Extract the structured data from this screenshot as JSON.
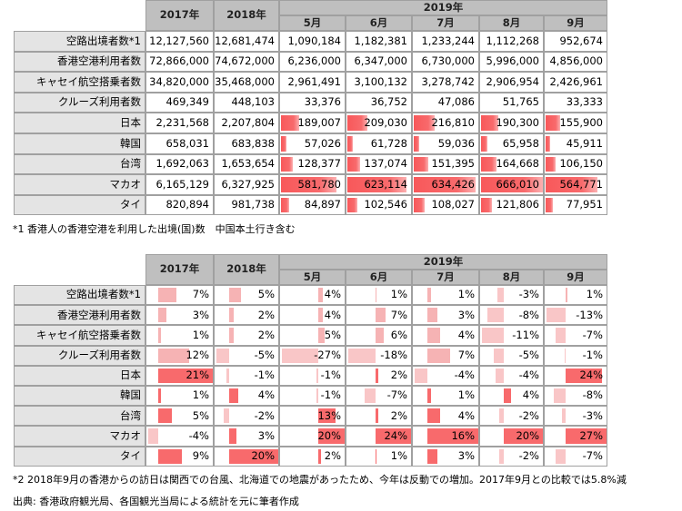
{
  "table1": {
    "header": {
      "years": [
        "2017年",
        "2018年",
        "2019年"
      ],
      "months": [
        "5月",
        "6月",
        "7月",
        "8月",
        "9月"
      ]
    },
    "rows": [
      {
        "label": "空路出境者数*1",
        "cells": [
          "12,127,560",
          "12,681,474",
          "1,090,184",
          "1,182,381",
          "1,233,244",
          "1,112,268",
          "952,674"
        ]
      },
      {
        "label": "香港空港利用者数",
        "cells": [
          "72,866,000",
          "74,672,000",
          "6,236,000",
          "6,347,000",
          "6,730,000",
          "5,996,000",
          "4,856,000"
        ]
      },
      {
        "label": "キャセイ航空搭乗者数",
        "cells": [
          "34,820,000",
          "35,468,000",
          "2,961,491",
          "3,100,132",
          "3,278,742",
          "2,906,954",
          "2,426,961"
        ]
      },
      {
        "label": "クルーズ利用者数",
        "cells": [
          "469,349",
          "448,103",
          "33,376",
          "36,752",
          "47,086",
          "51,765",
          "33,333"
        ]
      },
      {
        "label": "日本",
        "cells": [
          "2,231,568",
          "2,207,804",
          "189,007",
          "209,030",
          "216,810",
          "190,300",
          "155,900"
        ]
      },
      {
        "label": "韓国",
        "cells": [
          "658,031",
          "683,838",
          "57,026",
          "61,728",
          "59,036",
          "65,958",
          "45,911"
        ]
      },
      {
        "label": "台湾",
        "cells": [
          "1,692,063",
          "1,653,654",
          "128,377",
          "137,074",
          "151,395",
          "164,668",
          "106,150"
        ]
      },
      {
        "label": "マカオ",
        "cells": [
          "6,165,129",
          "6,327,925",
          "581,780",
          "623,114",
          "634,426",
          "666,010",
          "564,771"
        ]
      },
      {
        "label": "タイ",
        "cells": [
          "820,894",
          "981,738",
          "84,897",
          "102,546",
          "108,027",
          "121,806",
          "77,951"
        ]
      }
    ]
  },
  "note1": "*1 香港人の香港空港を利用した出境(国)数　中国本土行き含む",
  "table2": {
    "header": {
      "years": [
        "2017年",
        "2018年",
        "2019年"
      ],
      "months": [
        "5月",
        "6月",
        "7月",
        "8月",
        "9月"
      ]
    },
    "rows": [
      {
        "label": "空路出境者数*1",
        "cells": [
          "7%",
          "5%",
          "4%",
          "1%",
          "1%",
          "-3%",
          "1%"
        ]
      },
      {
        "label": "香港空港利用者数",
        "cells": [
          "3%",
          "2%",
          "4%",
          "7%",
          "3%",
          "-8%",
          "-13%"
        ]
      },
      {
        "label": "キャセイ航空搭乗者数",
        "cells": [
          "1%",
          "2%",
          "5%",
          "6%",
          "4%",
          "-11%",
          "-7%"
        ]
      },
      {
        "label": "クルーズ利用者数",
        "cells": [
          "12%",
          "-5%",
          "-27%",
          "-18%",
          "7%",
          "-5%",
          "-1%"
        ]
      },
      {
        "label": "日本",
        "cells": [
          "21%",
          "-1%",
          "-1%",
          "2%",
          "-4%",
          "-4%",
          "24%"
        ]
      },
      {
        "label": "韓国",
        "cells": [
          "1%",
          "4%",
          "-1%",
          "-7%",
          "1%",
          "4%",
          "-8%"
        ]
      },
      {
        "label": "台湾",
        "cells": [
          "5%",
          "-2%",
          "13%",
          "2%",
          "4%",
          "-2%",
          "-3%"
        ]
      },
      {
        "label": "マカオ",
        "cells": [
          "-4%",
          "3%",
          "20%",
          "24%",
          "16%",
          "20%",
          "27%"
        ]
      },
      {
        "label": "タイ",
        "cells": [
          "9%",
          "20%",
          "2%",
          "1%",
          "3%",
          "-2%",
          "-7%"
        ]
      }
    ]
  },
  "note2": "*2 2018年9月の香港からの訪日は関西での台風、北海道での地震があったため、今年は反動での増加。2017年9月との比較では5.8%減",
  "source": "出典: 香港政府観光局、各国観光当局による統計を元に筆者作成"
}
